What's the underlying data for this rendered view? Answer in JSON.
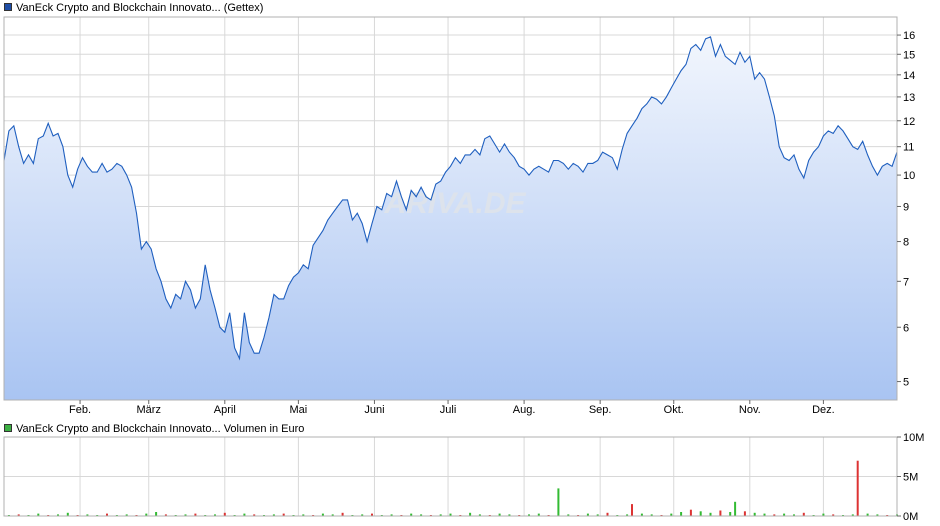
{
  "price_legend": {
    "label": "VanEck Crypto and Blockchain Innovato... (Gettex)",
    "color": "#1f4ea6"
  },
  "volume_legend": {
    "label": "VanEck Crypto and Blockchain Innovato... Volumen in Euro",
    "color": "#3cb043"
  },
  "watermark": "ARIVA.DE",
  "colors": {
    "line": "#1f5fbf",
    "up": "#33bb33",
    "down": "#dd3333",
    "grid": "#d8d8d8"
  },
  "chart_data": [
    {
      "type": "area",
      "title": "VanEck Crypto and Blockchain Innovato... (Gettex)",
      "y_scale": "log",
      "ylim": [
        4.7,
        17.0
      ],
      "y_ticks": [
        5,
        6,
        7,
        8,
        9,
        10,
        11,
        12,
        13,
        14,
        15,
        16
      ],
      "x_labels": [
        "Feb.",
        "März",
        "April",
        "Mai",
        "Juni",
        "Juli",
        "Aug.",
        "Sep.",
        "Okt.",
        "Nov.",
        "Dez."
      ],
      "x_label_positions_day": [
        31,
        59,
        90,
        120,
        151,
        181,
        212,
        243,
        273,
        304,
        334
      ],
      "x_range_days": [
        0,
        364
      ],
      "points": [
        [
          0,
          10.5
        ],
        [
          2,
          11.6
        ],
        [
          4,
          11.8
        ],
        [
          6,
          11.0
        ],
        [
          8,
          10.4
        ],
        [
          10,
          10.7
        ],
        [
          12,
          10.4
        ],
        [
          14,
          11.3
        ],
        [
          16,
          11.4
        ],
        [
          18,
          11.9
        ],
        [
          20,
          11.4
        ],
        [
          22,
          11.5
        ],
        [
          24,
          11.0
        ],
        [
          26,
          10.0
        ],
        [
          28,
          9.6
        ],
        [
          30,
          10.2
        ],
        [
          32,
          10.6
        ],
        [
          34,
          10.3
        ],
        [
          36,
          10.1
        ],
        [
          38,
          10.1
        ],
        [
          40,
          10.4
        ],
        [
          42,
          10.1
        ],
        [
          44,
          10.2
        ],
        [
          46,
          10.4
        ],
        [
          48,
          10.3
        ],
        [
          50,
          10.0
        ],
        [
          52,
          9.6
        ],
        [
          54,
          8.8
        ],
        [
          56,
          7.8
        ],
        [
          58,
          8.0
        ],
        [
          60,
          7.8
        ],
        [
          62,
          7.3
        ],
        [
          64,
          7.0
        ],
        [
          66,
          6.6
        ],
        [
          68,
          6.4
        ],
        [
          70,
          6.7
        ],
        [
          72,
          6.6
        ],
        [
          74,
          7.0
        ],
        [
          76,
          6.8
        ],
        [
          78,
          6.4
        ],
        [
          80,
          6.6
        ],
        [
          82,
          7.4
        ],
        [
          84,
          6.8
        ],
        [
          86,
          6.4
        ],
        [
          88,
          6.0
        ],
        [
          90,
          5.9
        ],
        [
          92,
          6.3
        ],
        [
          94,
          5.6
        ],
        [
          96,
          5.4
        ],
        [
          98,
          6.3
        ],
        [
          100,
          5.7
        ],
        [
          102,
          5.5
        ],
        [
          104,
          5.5
        ],
        [
          106,
          5.8
        ],
        [
          108,
          6.2
        ],
        [
          110,
          6.7
        ],
        [
          112,
          6.6
        ],
        [
          114,
          6.6
        ],
        [
          116,
          6.9
        ],
        [
          118,
          7.1
        ],
        [
          120,
          7.2
        ],
        [
          122,
          7.4
        ],
        [
          124,
          7.3
        ],
        [
          126,
          7.9
        ],
        [
          128,
          8.1
        ],
        [
          130,
          8.3
        ],
        [
          132,
          8.6
        ],
        [
          134,
          8.8
        ],
        [
          136,
          9.0
        ],
        [
          138,
          9.2
        ],
        [
          140,
          9.2
        ],
        [
          142,
          8.6
        ],
        [
          144,
          8.8
        ],
        [
          146,
          8.5
        ],
        [
          148,
          8.0
        ],
        [
          150,
          8.5
        ],
        [
          152,
          9.0
        ],
        [
          154,
          8.9
        ],
        [
          156,
          9.4
        ],
        [
          158,
          9.3
        ],
        [
          160,
          9.8
        ],
        [
          162,
          9.3
        ],
        [
          164,
          8.9
        ],
        [
          166,
          9.5
        ],
        [
          168,
          9.3
        ],
        [
          170,
          9.6
        ],
        [
          172,
          9.3
        ],
        [
          174,
          9.2
        ],
        [
          176,
          9.7
        ],
        [
          178,
          9.8
        ],
        [
          180,
          10.1
        ],
        [
          182,
          10.3
        ],
        [
          184,
          10.6
        ],
        [
          186,
          10.4
        ],
        [
          188,
          10.7
        ],
        [
          190,
          10.7
        ],
        [
          192,
          10.9
        ],
        [
          194,
          10.7
        ],
        [
          196,
          11.3
        ],
        [
          198,
          11.4
        ],
        [
          200,
          11.1
        ],
        [
          202,
          10.8
        ],
        [
          204,
          11.1
        ],
        [
          206,
          10.8
        ],
        [
          208,
          10.6
        ],
        [
          210,
          10.3
        ],
        [
          212,
          10.2
        ],
        [
          214,
          10.0
        ],
        [
          216,
          10.2
        ],
        [
          218,
          10.3
        ],
        [
          220,
          10.2
        ],
        [
          222,
          10.1
        ],
        [
          224,
          10.5
        ],
        [
          226,
          10.5
        ],
        [
          228,
          10.4
        ],
        [
          230,
          10.2
        ],
        [
          232,
          10.4
        ],
        [
          234,
          10.3
        ],
        [
          236,
          10.1
        ],
        [
          238,
          10.4
        ],
        [
          240,
          10.4
        ],
        [
          242,
          10.5
        ],
        [
          244,
          10.8
        ],
        [
          246,
          10.7
        ],
        [
          248,
          10.6
        ],
        [
          250,
          10.2
        ],
        [
          252,
          10.9
        ],
        [
          254,
          11.5
        ],
        [
          256,
          11.8
        ],
        [
          258,
          12.1
        ],
        [
          260,
          12.5
        ],
        [
          262,
          12.7
        ],
        [
          264,
          13.0
        ],
        [
          266,
          12.9
        ],
        [
          268,
          12.7
        ],
        [
          270,
          13.0
        ],
        [
          272,
          13.4
        ],
        [
          274,
          13.8
        ],
        [
          276,
          14.2
        ],
        [
          278,
          14.5
        ],
        [
          280,
          15.3
        ],
        [
          282,
          15.5
        ],
        [
          284,
          15.2
        ],
        [
          286,
          15.8
        ],
        [
          288,
          15.9
        ],
        [
          290,
          14.9
        ],
        [
          292,
          15.5
        ],
        [
          294,
          14.9
        ],
        [
          296,
          14.7
        ],
        [
          298,
          14.5
        ],
        [
          300,
          15.1
        ],
        [
          302,
          14.6
        ],
        [
          304,
          14.9
        ],
        [
          306,
          13.8
        ],
        [
          308,
          14.1
        ],
        [
          310,
          13.8
        ],
        [
          312,
          13.0
        ],
        [
          314,
          12.2
        ],
        [
          316,
          11.0
        ],
        [
          318,
          10.6
        ],
        [
          320,
          10.5
        ],
        [
          322,
          10.7
        ],
        [
          324,
          10.2
        ],
        [
          326,
          9.9
        ],
        [
          328,
          10.5
        ],
        [
          330,
          10.8
        ],
        [
          332,
          11.0
        ],
        [
          334,
          11.4
        ],
        [
          336,
          11.6
        ],
        [
          338,
          11.5
        ],
        [
          340,
          11.8
        ],
        [
          342,
          11.6
        ],
        [
          344,
          11.3
        ],
        [
          346,
          11.0
        ],
        [
          348,
          10.9
        ],
        [
          350,
          11.2
        ],
        [
          352,
          10.7
        ],
        [
          354,
          10.3
        ],
        [
          356,
          10.0
        ],
        [
          358,
          10.3
        ],
        [
          360,
          10.4
        ],
        [
          362,
          10.3
        ],
        [
          364,
          10.8
        ]
      ]
    },
    {
      "type": "bar",
      "title": "VanEck Crypto and Blockchain Innovato... Volumen in Euro",
      "ylim": [
        0,
        10
      ],
      "y_unit": "M",
      "y_ticks": [
        "0M",
        "5M",
        "10M"
      ],
      "y_tick_values": [
        0,
        5,
        10
      ],
      "bars": [
        [
          2,
          0.1
        ],
        [
          6,
          0.2
        ],
        [
          10,
          0.1
        ],
        [
          14,
          0.3
        ],
        [
          18,
          0.1
        ],
        [
          22,
          0.2
        ],
        [
          26,
          0.4
        ],
        [
          30,
          0.1
        ],
        [
          34,
          0.2
        ],
        [
          38,
          0.1
        ],
        [
          42,
          0.3
        ],
        [
          46,
          0.1
        ],
        [
          50,
          0.2
        ],
        [
          54,
          0.1
        ],
        [
          58,
          0.3
        ],
        [
          62,
          0.5
        ],
        [
          66,
          0.2
        ],
        [
          70,
          0.1
        ],
        [
          74,
          0.2
        ],
        [
          78,
          0.3
        ],
        [
          82,
          0.1
        ],
        [
          86,
          0.2
        ],
        [
          90,
          0.4
        ],
        [
          94,
          0.1
        ],
        [
          98,
          0.3
        ],
        [
          102,
          0.2
        ],
        [
          106,
          0.1
        ],
        [
          110,
          0.2
        ],
        [
          114,
          0.3
        ],
        [
          118,
          0.1
        ],
        [
          122,
          0.2
        ],
        [
          126,
          0.1
        ],
        [
          130,
          0.3
        ],
        [
          134,
          0.2
        ],
        [
          138,
          0.4
        ],
        [
          142,
          0.1
        ],
        [
          146,
          0.2
        ],
        [
          150,
          0.3
        ],
        [
          154,
          0.1
        ],
        [
          158,
          0.2
        ],
        [
          162,
          0.1
        ],
        [
          166,
          0.3
        ],
        [
          170,
          0.2
        ],
        [
          174,
          0.1
        ],
        [
          178,
          0.2
        ],
        [
          182,
          0.3
        ],
        [
          186,
          0.1
        ],
        [
          190,
          0.4
        ],
        [
          194,
          0.2
        ],
        [
          198,
          0.1
        ],
        [
          202,
          0.3
        ],
        [
          206,
          0.2
        ],
        [
          210,
          0.1
        ],
        [
          214,
          0.2
        ],
        [
          218,
          0.3
        ],
        [
          222,
          0.1
        ],
        [
          226,
          3.5
        ],
        [
          230,
          0.2
        ],
        [
          234,
          0.1
        ],
        [
          238,
          0.3
        ],
        [
          242,
          0.2
        ],
        [
          246,
          0.4
        ],
        [
          250,
          0.1
        ],
        [
          254,
          0.2
        ],
        [
          256,
          1.5
        ],
        [
          260,
          0.3
        ],
        [
          264,
          0.2
        ],
        [
          268,
          0.1
        ],
        [
          272,
          0.3
        ],
        [
          276,
          0.5
        ],
        [
          280,
          0.8
        ],
        [
          284,
          0.6
        ],
        [
          288,
          0.4
        ],
        [
          292,
          0.7
        ],
        [
          296,
          0.5
        ],
        [
          298,
          1.8
        ],
        [
          302,
          0.6
        ],
        [
          306,
          0.4
        ],
        [
          310,
          0.3
        ],
        [
          314,
          0.2
        ],
        [
          318,
          0.3
        ],
        [
          322,
          0.2
        ],
        [
          326,
          0.4
        ],
        [
          330,
          0.1
        ],
        [
          334,
          0.3
        ],
        [
          338,
          0.2
        ],
        [
          342,
          0.1
        ],
        [
          346,
          0.2
        ],
        [
          348,
          7.0
        ],
        [
          352,
          0.3
        ],
        [
          356,
          0.2
        ],
        [
          360,
          0.1
        ],
        [
          364,
          0.2
        ]
      ]
    }
  ]
}
